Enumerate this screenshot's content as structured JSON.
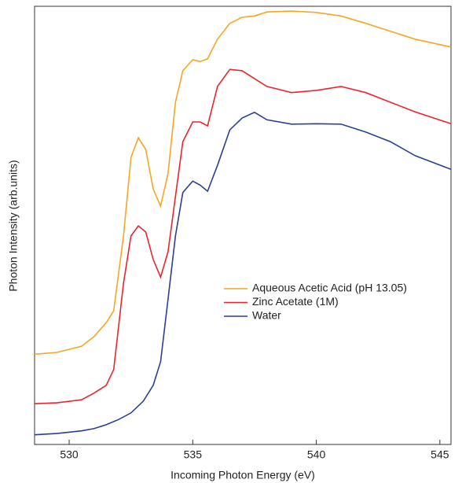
{
  "chart_data": {
    "type": "line",
    "x_label": "Incoming Photon Energy (eV)",
    "y_label": "Photon Intensity (arb.units)",
    "xlim": [
      528.6,
      545.45
    ],
    "ylim": [
      0,
      100
    ],
    "xticks": [
      530,
      535,
      540,
      545
    ],
    "legend_position": "center-right",
    "series": [
      {
        "name": "Aqueous Acetic Acid (pH 13.05)",
        "color": "#f5a623",
        "x": [
          528.6,
          529.5,
          530.5,
          531,
          531.5,
          531.8,
          532.2,
          532.5,
          532.8,
          533.1,
          533.4,
          533.7,
          534,
          534.3,
          534.6,
          535,
          535.3,
          535.6,
          536,
          536.5,
          537,
          537.5,
          538,
          539,
          540,
          541,
          542,
          543,
          544,
          545.45
        ],
        "values": [
          20.6,
          21.0,
          22.4,
          24.6,
          27.8,
          30.5,
          47.6,
          65.5,
          70.0,
          67.3,
          58.3,
          54.4,
          61.9,
          78.1,
          85.3,
          87.8,
          87.4,
          88.0,
          92.5,
          96.1,
          97.5,
          97.8,
          98.7,
          98.9,
          98.6,
          97.8,
          96.1,
          94.3,
          92.5,
          90.7
        ]
      },
      {
        "name": "Zinc Acetate (1M)",
        "color": "#e8262b",
        "x": [
          528.6,
          529.5,
          530.5,
          531,
          531.5,
          531.8,
          532.2,
          532.5,
          532.8,
          533.1,
          533.4,
          533.7,
          534,
          534.3,
          534.6,
          535,
          535.3,
          535.6,
          536,
          536.5,
          537,
          537.5,
          538,
          539,
          540,
          541,
          542,
          543,
          544,
          545.45
        ],
        "values": [
          9.3,
          9.5,
          10.2,
          11.7,
          13.5,
          17.1,
          36.8,
          47.6,
          49.9,
          48.5,
          42.2,
          38.2,
          44.0,
          56.6,
          69.1,
          73.6,
          73.6,
          72.7,
          81.7,
          85.6,
          85.3,
          83.5,
          81.7,
          80.3,
          80.8,
          81.7,
          80.3,
          78.1,
          75.9,
          73.2
        ]
      },
      {
        "name": "Water",
        "color": "#2b3f94",
        "x": [
          528.6,
          529.5,
          530.5,
          531,
          531.5,
          532,
          532.5,
          533,
          533.4,
          533.7,
          534,
          534.3,
          534.6,
          535,
          535.3,
          535.6,
          536,
          536.5,
          537,
          537.5,
          538,
          539,
          540,
          541,
          542,
          543,
          544,
          545.45
        ],
        "values": [
          2.2,
          2.5,
          3.1,
          3.6,
          4.5,
          5.7,
          7.2,
          9.9,
          13.5,
          18.9,
          33.2,
          47.6,
          57.5,
          60.1,
          59.2,
          57.8,
          63.7,
          71.8,
          74.5,
          75.8,
          74.1,
          73.1,
          73.2,
          73.1,
          71.3,
          69.1,
          65.9,
          62.8
        ]
      }
    ]
  }
}
